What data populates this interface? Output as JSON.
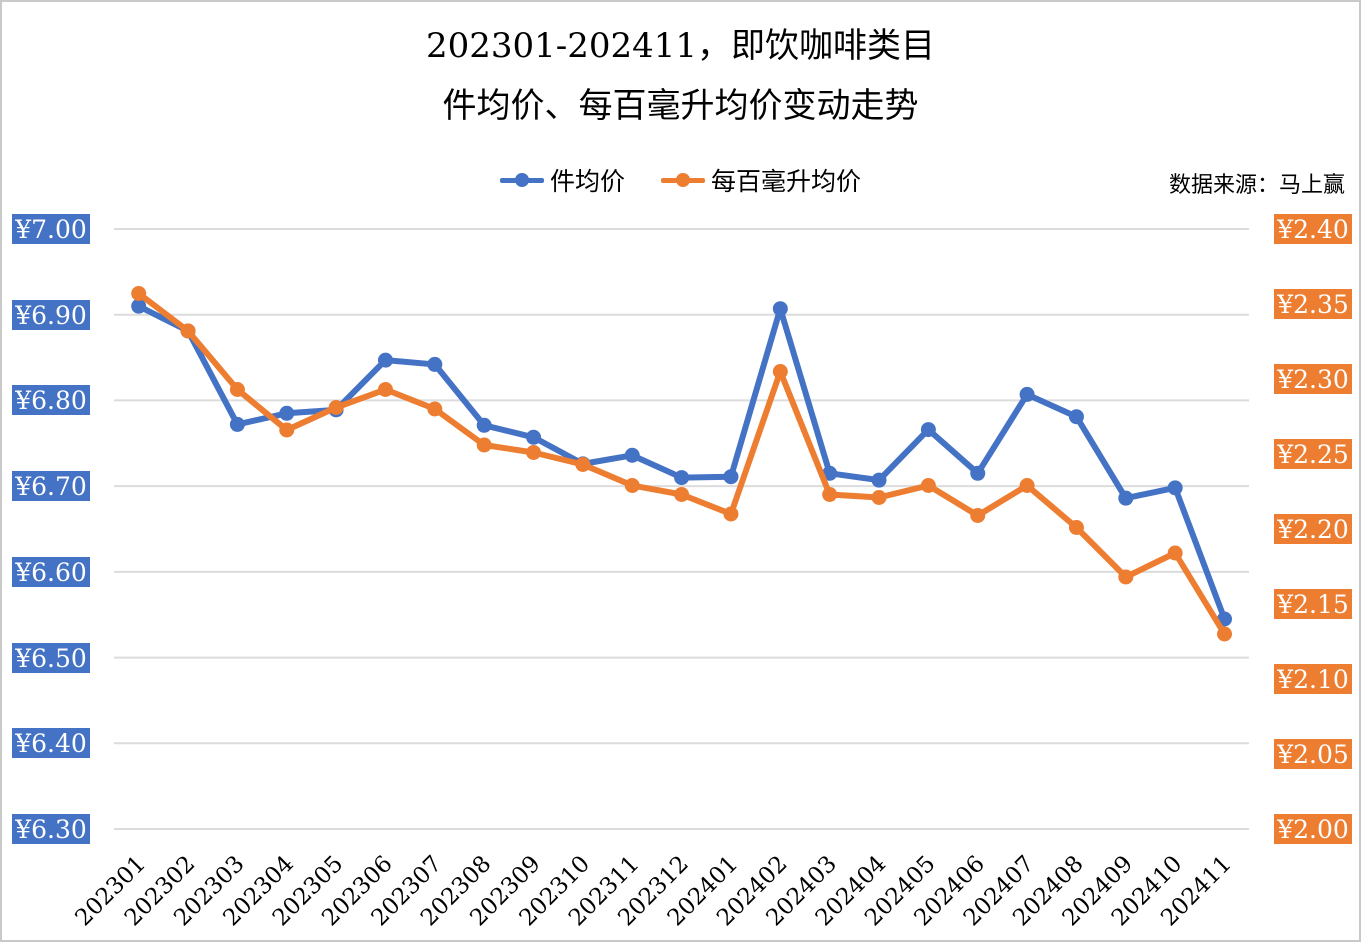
{
  "title": {
    "line1": "202301-202411，即饮咖啡类目",
    "line2": "件均价、每百毫升均价变动走势"
  },
  "source": "数据来源：马上赢",
  "legend": [
    {
      "label": "件均价",
      "color": "#4472C4"
    },
    {
      "label": "每百毫升均价",
      "color": "#ED7D31"
    }
  ],
  "chart_data": {
    "type": "line",
    "title": "202301-202411，即饮咖啡类目 件均价、每百毫升均价变动走势",
    "xlabel": "",
    "ylabel": "",
    "grid": true,
    "gridline_color": "#DCDCDC",
    "legend_position": "top",
    "categories": [
      "202301",
      "202302",
      "202303",
      "202304",
      "202305",
      "202306",
      "202307",
      "202308",
      "202309",
      "202310",
      "202311",
      "202312",
      "202401",
      "202402",
      "202403",
      "202404",
      "202405",
      "202406",
      "202407",
      "202408",
      "202409",
      "202410",
      "202411"
    ],
    "left_axis": {
      "ticks": [
        "¥7.00",
        "¥6.90",
        "¥6.80",
        "¥6.70",
        "¥6.60",
        "¥6.50",
        "¥6.40",
        "¥6.30"
      ],
      "max": 7.0,
      "min": 6.3,
      "step": 0.1,
      "color": "#4472C4"
    },
    "right_axis": {
      "ticks": [
        "¥2.40",
        "¥2.35",
        "¥2.30",
        "¥2.25",
        "¥2.20",
        "¥2.15",
        "¥2.10",
        "¥2.05",
        "¥2.00"
      ],
      "max": 2.4,
      "min": 2.0,
      "step": 0.05,
      "color": "#ED7D31"
    },
    "series": [
      {
        "name": "件均价",
        "key": "avg-item-price",
        "axis": "left",
        "color": "#4472C4",
        "values": [
          6.91,
          6.881,
          6.772,
          6.785,
          6.789,
          6.847,
          6.842,
          6.771,
          6.757,
          6.726,
          6.736,
          6.71,
          6.711,
          6.907,
          6.715,
          6.707,
          6.766,
          6.715,
          6.807,
          6.781,
          6.686,
          6.698,
          6.545
        ]
      },
      {
        "name": "每百毫升均价",
        "key": "avg-price-per-100ml",
        "axis": "right",
        "color": "#ED7D31",
        "values": [
          2.357,
          2.332,
          2.293,
          2.266,
          2.281,
          2.293,
          2.28,
          2.256,
          2.251,
          2.243,
          2.229,
          2.223,
          2.21,
          2.305,
          2.223,
          2.221,
          2.229,
          2.209,
          2.229,
          2.201,
          2.168,
          2.184,
          2.13
        ]
      }
    ]
  }
}
